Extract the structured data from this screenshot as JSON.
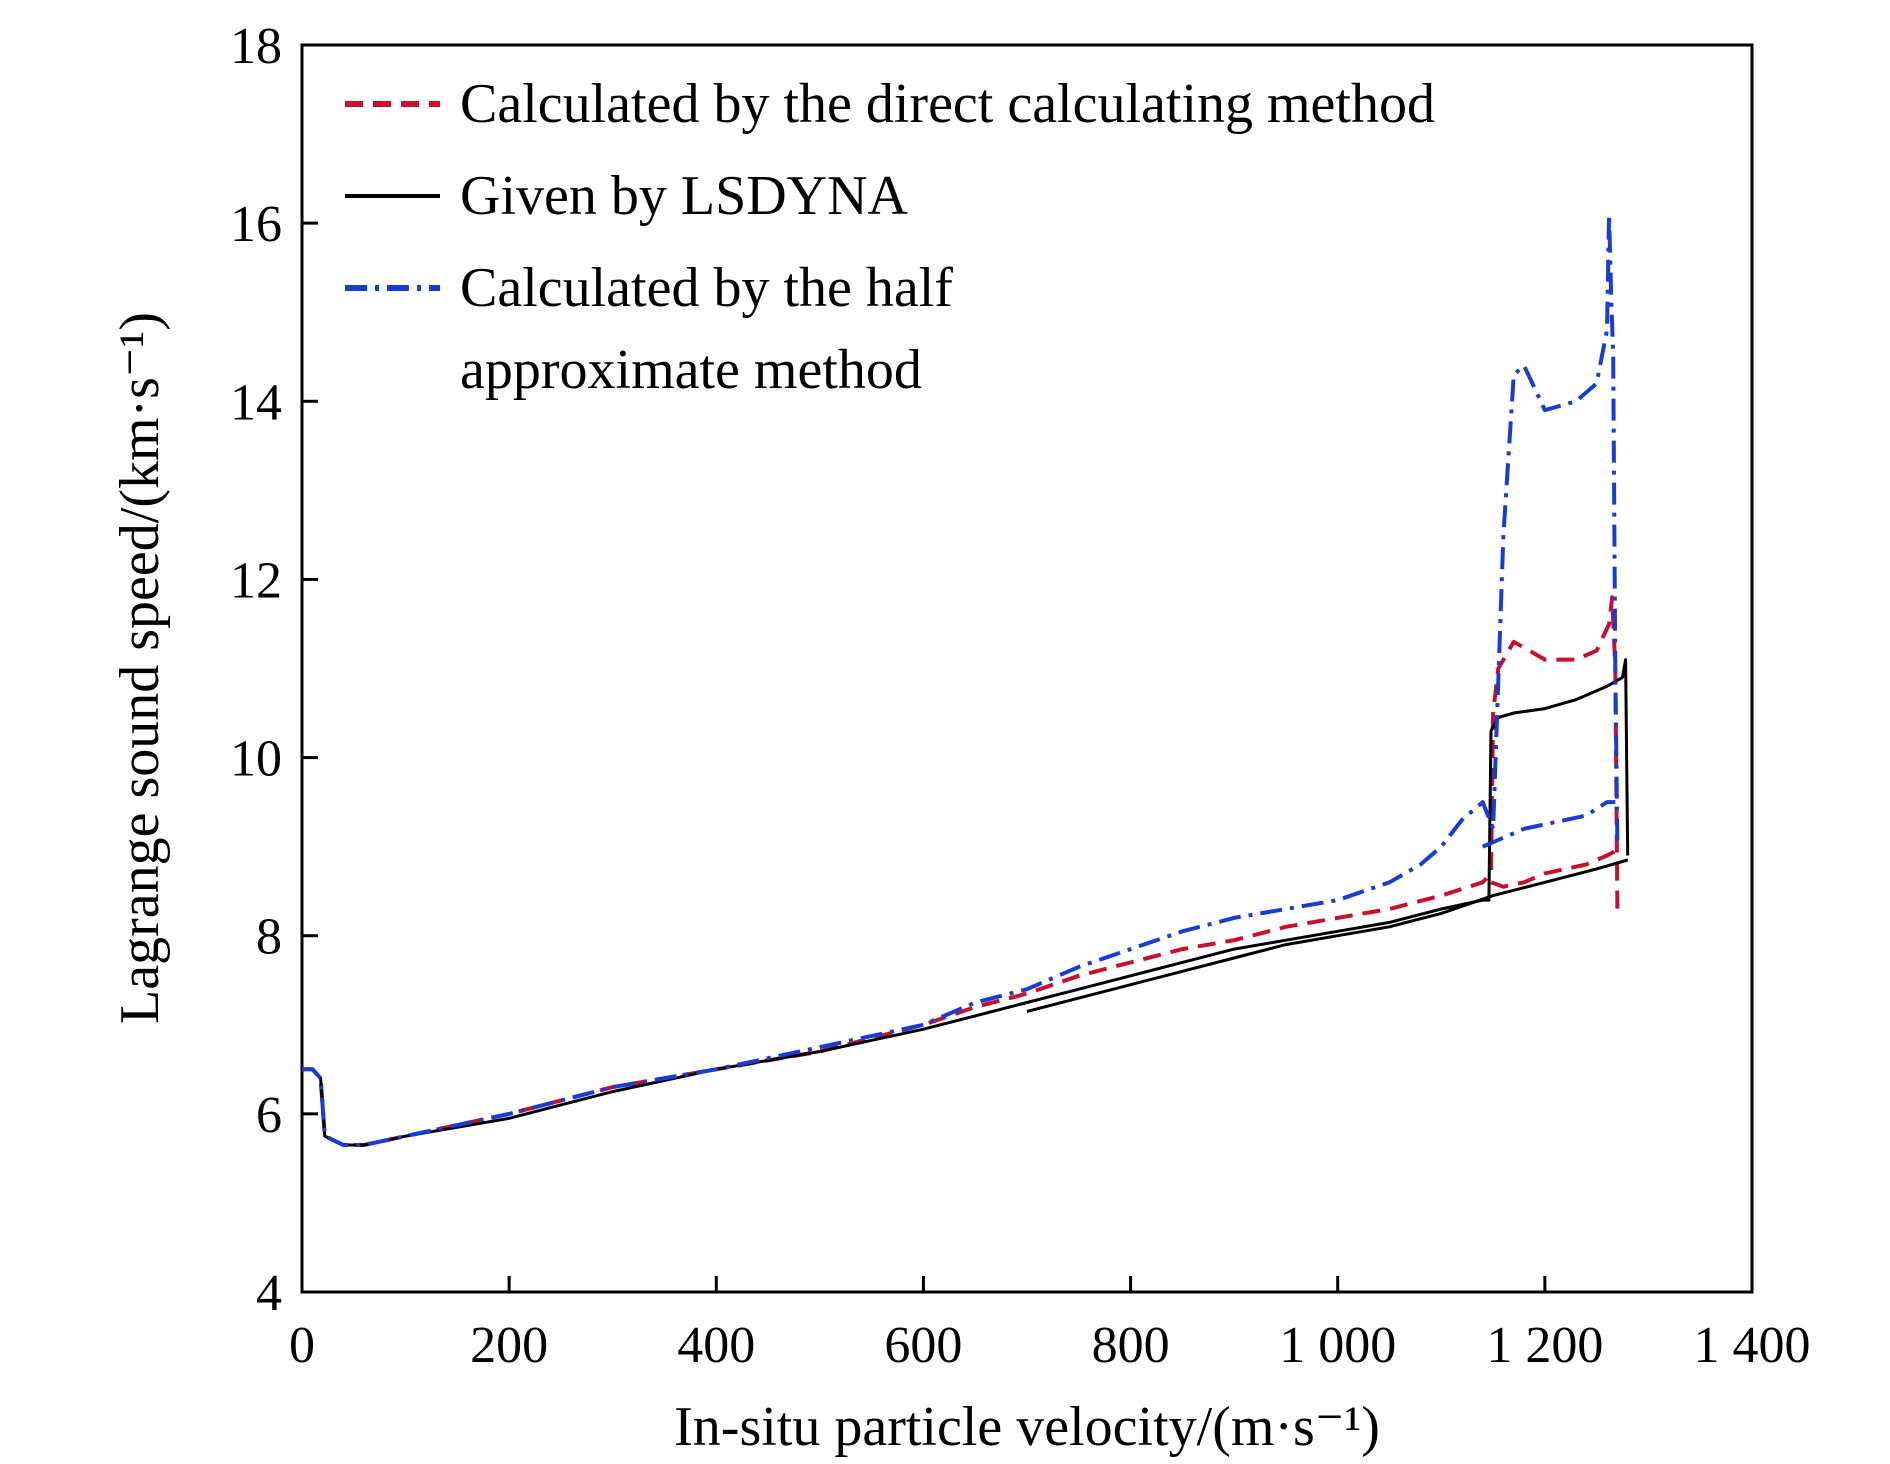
{
  "chart_data": {
    "type": "line",
    "xlabel": "In-situ particle velocity/(m·s⁻¹)",
    "ylabel": "Lagrange sound speed/(km·s⁻¹)",
    "xlim": [
      0,
      1400
    ],
    "ylim": [
      4,
      18
    ],
    "xticks": [
      0,
      200,
      400,
      600,
      800,
      1000,
      1200,
      1400
    ],
    "xtick_labels": [
      "0",
      "200",
      "400",
      "600",
      "800",
      "1 000",
      "1 200",
      "1 400"
    ],
    "yticks": [
      4,
      6,
      8,
      10,
      12,
      14,
      16,
      18
    ],
    "ytick_labels": [
      "4",
      "6",
      "8",
      "10",
      "12",
      "14",
      "16",
      "18"
    ],
    "grid": false,
    "legend_position": "top-left",
    "series": [
      {
        "name": "Calculated by the direct calculating method",
        "color": "#c8102e",
        "style": "dashed",
        "x": [
          0,
          10,
          18,
          22,
          40,
          60,
          100,
          200,
          300,
          400,
          500,
          600,
          650,
          700,
          750,
          800,
          850,
          900,
          950,
          1000,
          1050,
          1100,
          1140,
          1148,
          1150,
          1155,
          1170,
          1200,
          1230,
          1250,
          1262,
          1265,
          1268,
          1270,
          1272
        ],
        "y": [
          6.5,
          6.5,
          6.4,
          5.75,
          5.65,
          5.65,
          5.75,
          6.0,
          6.3,
          6.5,
          6.7,
          7.0,
          7.2,
          7.35,
          7.55,
          7.7,
          7.85,
          7.95,
          8.1,
          8.2,
          8.3,
          8.45,
          8.6,
          8.7,
          10.5,
          11.0,
          11.3,
          11.1,
          11.1,
          11.2,
          11.5,
          11.8,
          11.0,
          8.3,
          8.2
        ]
      },
      {
        "name": "",
        "color": "#c8102e",
        "style": "dashed",
        "x": [
          1148,
          1160,
          1180,
          1200,
          1220,
          1240,
          1260,
          1268
        ],
        "y": [
          8.6,
          8.55,
          8.6,
          8.7,
          8.75,
          8.8,
          8.9,
          8.95
        ]
      },
      {
        "name": "Given by LSDYNA",
        "color": "#000000",
        "style": "solid",
        "x": [
          0,
          10,
          18,
          22,
          40,
          60,
          100,
          200,
          300,
          400,
          500,
          600,
          650,
          700,
          750,
          800,
          850,
          900,
          950,
          1000,
          1050,
          1100,
          1140,
          1146,
          1148,
          1155,
          1170,
          1200,
          1230,
          1260,
          1275,
          1278,
          1280
        ],
        "y": [
          6.5,
          6.5,
          6.4,
          5.75,
          5.65,
          5.65,
          5.75,
          5.95,
          6.25,
          6.5,
          6.7,
          6.95,
          7.1,
          7.25,
          7.4,
          7.55,
          7.7,
          7.85,
          7.95,
          8.05,
          8.15,
          8.3,
          8.4,
          8.4,
          10.3,
          10.45,
          10.5,
          10.55,
          10.65,
          10.8,
          10.9,
          11.1,
          8.9
        ]
      },
      {
        "name": "",
        "color": "#000000",
        "style": "solid",
        "x": [
          700,
          750,
          800,
          850,
          900,
          950,
          1000,
          1050,
          1100,
          1150,
          1200,
          1250,
          1280
        ],
        "y": [
          7.15,
          7.3,
          7.45,
          7.6,
          7.75,
          7.9,
          8.0,
          8.1,
          8.25,
          8.45,
          8.6,
          8.75,
          8.85
        ]
      },
      {
        "name": "Calculated by the half approximate method",
        "color": "#1a3cd6",
        "style": "dashdot",
        "x": [
          0,
          10,
          18,
          22,
          40,
          60,
          100,
          200,
          300,
          400,
          500,
          600,
          650,
          700,
          750,
          800,
          850,
          900,
          950,
          1000,
          1050,
          1080,
          1100,
          1120,
          1140,
          1150,
          1160,
          1170,
          1180,
          1200,
          1230,
          1250,
          1260,
          1262,
          1264,
          1266,
          1268,
          1270
        ],
        "y": [
          6.5,
          6.5,
          6.4,
          5.75,
          5.65,
          5.65,
          5.75,
          6.0,
          6.3,
          6.5,
          6.75,
          7.0,
          7.25,
          7.4,
          7.65,
          7.85,
          8.05,
          8.2,
          8.3,
          8.4,
          8.6,
          8.8,
          9.0,
          9.3,
          9.5,
          9.2,
          12.5,
          14.3,
          14.4,
          13.9,
          14.0,
          14.2,
          14.8,
          16.1,
          15.2,
          14.5,
          11.0,
          9.0
        ]
      },
      {
        "name": "",
        "color": "#1a3cd6",
        "style": "dashdot",
        "x": [
          1140,
          1150,
          1160,
          1180,
          1200,
          1220,
          1240,
          1260,
          1268
        ],
        "y": [
          9.0,
          9.05,
          9.1,
          9.2,
          9.25,
          9.3,
          9.35,
          9.5,
          9.5
        ]
      }
    ],
    "legend": [
      {
        "label_lines": [
          "Calculated by the direct calculating method"
        ],
        "color": "#c8102e",
        "style": "dashed"
      },
      {
        "label_lines": [
          "Given by LSDYNA"
        ],
        "color": "#000000",
        "style": "solid"
      },
      {
        "label_lines": [
          "Calculated by the half",
          "approximate method"
        ],
        "color": "#1a3cd6",
        "style": "dashdot"
      }
    ]
  }
}
